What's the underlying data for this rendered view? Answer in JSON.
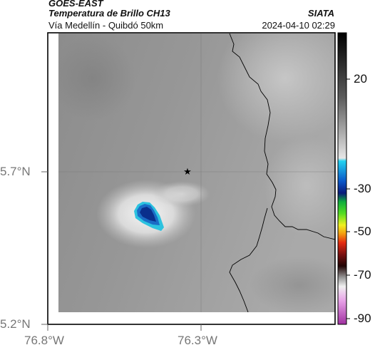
{
  "header": {
    "agency": "GOES-EAST",
    "product": "Temperatura de Brillo CH13",
    "organization": "SIATA",
    "route": "Vía Medellín - Quibdó 50km",
    "timestamp": "2024-04-10 02:29"
  },
  "axes": {
    "lat_ticks": [
      "5.7°N",
      "5.2°N"
    ],
    "lon_ticks": [
      "76.8°W",
      "76.3°W"
    ]
  },
  "colorbar": {
    "ticks": [
      "20",
      "-30",
      "-50",
      "-70",
      "-90"
    ]
  },
  "colors": {
    "cold_core": "#0a2f8c",
    "cold_edge": "#1fb6d8",
    "frame": "#000000"
  },
  "marker": {
    "icon": "star-icon"
  }
}
